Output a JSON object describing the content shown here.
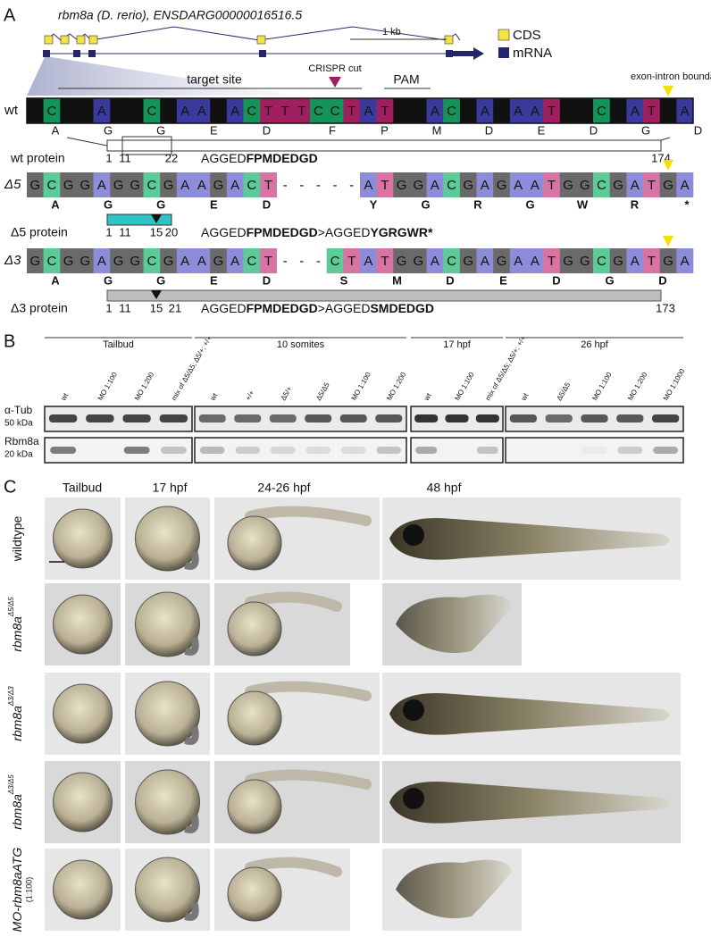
{
  "panel_a": {
    "label": "A",
    "gene": "rbm8a (D. rerio), ENSDARG00000016516.5",
    "scale_bar": "1 kb",
    "legend": [
      "CDS",
      "mRNA"
    ],
    "target_site": "target site",
    "crispr_cut": "CRISPR cut",
    "pam": "PAM",
    "boundary": "exon-intron boundary",
    "rows": [
      {
        "label": "wt",
        "mutant": false,
        "sequence": [
          "G",
          "C",
          "G",
          "G",
          "A",
          "G",
          "G",
          "C",
          "G",
          "A",
          "A",
          "G",
          "A",
          "C",
          "T",
          "T",
          "T",
          "C",
          "C",
          "T",
          "A",
          "T",
          "G",
          "G",
          "A",
          "C",
          "G",
          "A",
          "G",
          "A",
          "A",
          "T",
          "G",
          "G",
          "C",
          "G",
          "A",
          "T",
          "G",
          "A"
        ],
        "amino_acids": [
          "A",
          "G",
          "G",
          "E",
          "D",
          "F",
          "P",
          "M",
          "D",
          "E",
          "D",
          "G",
          "D"
        ],
        "protein": {
          "label": "wt protein",
          "positions": [
            1,
            11,
            22,
            174
          ],
          "sequence": [
            {
              "text": "AGGED",
              "bold": false
            },
            {
              "text": "FPMDEDGD",
              "bold": true
            }
          ]
        }
      },
      {
        "label": "Δ5",
        "mutant": true,
        "sequence": [
          "G",
          "C",
          "G",
          "G",
          "A",
          "G",
          "G",
          "C",
          "G",
          "A",
          "A",
          "G",
          "A",
          "C",
          "T",
          "-",
          "-",
          "-",
          "-",
          "-",
          "A",
          "T",
          "G",
          "G",
          "A",
          "C",
          "G",
          "A",
          "G",
          "A",
          "A",
          "T",
          "G",
          "G",
          "C",
          "G",
          "A",
          "T",
          "G",
          "A"
        ],
        "amino_acids": [
          "A",
          "G",
          "G",
          "E",
          "D",
          "Y",
          "G",
          "R",
          "G",
          "W",
          "R",
          "*"
        ],
        "protein": {
          "label": "Δ5 protein",
          "positions": [
            1,
            11,
            15,
            20
          ],
          "sequence": [
            {
              "text": "AGGED",
              "bold": false
            },
            {
              "text": "FPMDEDGD",
              "bold": true
            },
            {
              "text": ">AGGED",
              "bold": false
            },
            {
              "text": "YGRGWR*",
              "bold": true
            }
          ]
        }
      },
      {
        "label": "Δ3",
        "mutant": true,
        "sequence": [
          "G",
          "C",
          "G",
          "G",
          "A",
          "G",
          "G",
          "C",
          "G",
          "A",
          "A",
          "G",
          "A",
          "C",
          "T",
          "-",
          "-",
          "-",
          "C",
          "T",
          "A",
          "T",
          "G",
          "G",
          "A",
          "C",
          "G",
          "A",
          "G",
          "A",
          "A",
          "T",
          "G",
          "G",
          "C",
          "G",
          "A",
          "T",
          "G",
          "A"
        ],
        "amino_acids": [
          "A",
          "G",
          "G",
          "E",
          "D",
          "S",
          "M",
          "D",
          "E",
          "D",
          "G",
          "D"
        ],
        "protein": {
          "label": "Δ3 protein",
          "positions": [
            1,
            11,
            15,
            21,
            173
          ],
          "sequence": [
            {
              "text": "AGGED",
              "bold": false
            },
            {
              "text": "FPMDEDGD",
              "bold": true
            },
            {
              "text": ">AGGED",
              "bold": false
            },
            {
              "text": "SMDEDGD",
              "bold": true
            }
          ]
        }
      }
    ]
  },
  "panel_b": {
    "label": "B",
    "groups": [
      {
        "name": "Tailbud",
        "lanes": [
          "wt",
          "MO 1:100",
          "MO 1:200",
          "mix of Δ5/Δ5; Δ5/+; +/+"
        ]
      },
      {
        "name": "10 somites",
        "lanes": [
          "wt",
          "+/+",
          "Δ5/+",
          "Δ5/Δ5",
          "MO 1:100",
          "MO 1:200"
        ]
      },
      {
        "name": "17 hpf",
        "lanes": [
          "wt",
          "MO 1:100",
          "mix of Δ5/Δ5; Δ5/+; +/+"
        ]
      },
      {
        "name": "26 hpf",
        "lanes": [
          "wt",
          "Δ5/Δ5",
          "MO 1:100",
          "MO 1:200",
          "MO 1:1000"
        ]
      }
    ],
    "blots": [
      {
        "protein": "α-Tub",
        "size": "50 kDa"
      },
      {
        "protein": "Rbm8a",
        "size": "20 kDa"
      }
    ]
  },
  "panel_c": {
    "label": "C",
    "columns": [
      "Tailbud",
      "17 hpf",
      "24-26 hpf",
      "48 hpf"
    ],
    "rows": [
      {
        "label": "wildtype"
      },
      {
        "label": "rbm8a",
        "superscript": "Δ5/Δ5"
      },
      {
        "label": "rbm8a",
        "superscript": "Δ3/Δ3"
      },
      {
        "label": "rbm8a",
        "superscript": "Δ3/Δ5"
      },
      {
        "label": "MO-rbm8aATG",
        "note": "(1:100)"
      }
    ]
  }
}
